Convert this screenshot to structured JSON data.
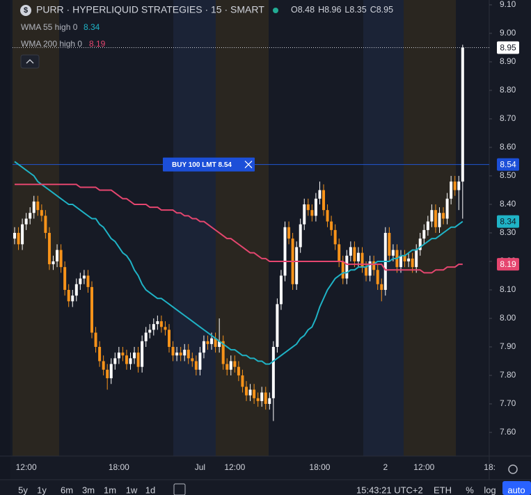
{
  "header": {
    "symbol": "PURR · HYPERLIQUID STRATEGIES · 15 · SMART",
    "ohlc": [
      "O8.48",
      "H8.96",
      "L8.35",
      "C8.95"
    ]
  },
  "chart_data": {
    "type": "candlestick",
    "categories": [
      null,
      null,
      null,
      "12:00",
      null,
      null,
      null,
      null,
      null,
      null,
      null,
      null,
      null,
      null,
      null,
      null,
      null,
      null,
      null,
      null,
      null,
      null,
      null,
      null,
      null,
      null,
      null,
      "18:00",
      null,
      null,
      null,
      null,
      null,
      null,
      null,
      null,
      null,
      null,
      null,
      null,
      null,
      null,
      null,
      null,
      null,
      null,
      null,
      null,
      "Jul",
      null,
      null,
      null,
      null,
      null,
      null,
      null,
      null,
      "12:00",
      null,
      null,
      null,
      null,
      null,
      null,
      null,
      null,
      null,
      null,
      null,
      null,
      null,
      null,
      null,
      null,
      null,
      null,
      null,
      null,
      null,
      "18:00",
      null,
      null,
      null,
      null,
      null,
      null,
      null,
      null,
      null,
      null,
      null,
      null,
      null,
      null,
      null,
      null,
      "2",
      null,
      null,
      null,
      null,
      null,
      null,
      null,
      null,
      null,
      "12:00",
      null,
      null,
      null,
      null,
      null,
      null,
      null,
      null,
      null,
      null,
      null,
      null,
      null,
      null,
      null,
      null,
      "18:"
    ],
    "open": [
      8.28,
      8.3,
      8.26,
      8.33,
      8.35,
      8.37,
      8.41,
      8.38,
      8.36,
      8.3,
      8.19,
      8.2,
      8.24,
      8.18,
      8.1,
      8.06,
      8.08,
      8.12,
      8.14,
      8.15,
      8.11,
      7.95,
      7.9,
      7.85,
      7.82,
      7.79,
      7.84,
      7.86,
      7.88,
      7.87,
      7.84,
      7.86,
      7.88,
      7.83,
      7.92,
      7.95,
      7.96,
      7.98,
      7.99,
      7.97,
      7.96,
      7.9,
      7.87,
      7.88,
      7.87,
      7.89,
      7.86,
      7.85,
      7.82,
      7.88,
      7.92,
      7.91,
      7.93,
      7.9,
      7.92,
      7.84,
      7.82,
      7.85,
      7.83,
      7.8,
      7.76,
      7.73,
      7.75,
      7.72,
      7.71,
      7.74,
      7.7,
      7.72,
      7.9,
      8.05,
      8.15,
      8.32,
      8.28,
      8.12,
      8.25,
      8.33,
      8.4,
      8.38,
      8.36,
      8.42,
      8.45,
      8.38,
      8.34,
      8.31,
      8.26,
      8.2,
      8.14,
      8.22,
      8.25,
      8.2,
      8.23,
      8.18,
      8.15,
      8.2,
      8.17,
      8.12,
      8.1,
      8.3,
      8.22,
      8.24,
      8.18,
      8.22,
      8.2,
      8.21,
      8.18,
      8.24,
      8.28,
      8.31,
      8.34,
      8.38,
      8.32,
      8.37,
      8.35,
      8.42,
      8.48,
      8.45,
      8.48,
      null,
      null,
      null,
      null,
      null,
      null,
      null
    ],
    "high": [
      8.32,
      8.32,
      8.35,
      8.37,
      8.39,
      8.43,
      8.43,
      8.4,
      8.38,
      8.32,
      8.22,
      8.26,
      8.26,
      8.2,
      8.12,
      8.1,
      8.14,
      8.16,
      8.17,
      8.17,
      8.13,
      7.97,
      7.92,
      7.87,
      7.84,
      7.86,
      7.88,
      7.9,
      7.9,
      7.89,
      7.88,
      7.9,
      7.9,
      7.94,
      7.97,
      7.98,
      8.0,
      8.01,
      8.01,
      7.99,
      7.98,
      7.92,
      7.9,
      7.9,
      7.91,
      7.91,
      7.88,
      7.87,
      7.9,
      7.94,
      7.94,
      7.95,
      7.95,
      8.0,
      7.94,
      7.86,
      7.87,
      7.87,
      7.85,
      7.82,
      7.78,
      7.77,
      7.77,
      7.74,
      7.76,
      7.76,
      7.74,
      7.92,
      8.07,
      8.17,
      8.34,
      8.34,
      8.3,
      8.27,
      8.35,
      8.42,
      8.42,
      8.4,
      8.44,
      8.48,
      8.47,
      8.4,
      8.36,
      8.33,
      8.28,
      8.22,
      8.24,
      8.27,
      8.27,
      8.25,
      8.25,
      8.2,
      8.22,
      8.22,
      8.19,
      8.14,
      8.32,
      8.32,
      8.26,
      8.26,
      8.24,
      8.24,
      8.23,
      8.23,
      8.26,
      8.3,
      8.33,
      8.36,
      8.4,
      8.4,
      8.39,
      8.39,
      8.44,
      8.5,
      8.5,
      8.5,
      8.96,
      null,
      null,
      null,
      null,
      null,
      null,
      null
    ],
    "low": [
      8.26,
      8.24,
      8.24,
      8.31,
      8.33,
      8.35,
      8.36,
      8.34,
      8.28,
      8.17,
      8.17,
      8.18,
      8.16,
      8.08,
      8.04,
      8.04,
      8.06,
      8.1,
      8.12,
      8.09,
      7.93,
      7.88,
      7.83,
      7.8,
      7.75,
      7.77,
      7.82,
      7.84,
      7.85,
      7.82,
      7.82,
      7.84,
      7.81,
      7.81,
      7.9,
      7.93,
      7.94,
      7.96,
      7.95,
      7.94,
      7.88,
      7.85,
      7.85,
      7.85,
      7.85,
      7.84,
      7.83,
      7.8,
      7.8,
      7.86,
      7.89,
      7.89,
      7.88,
      7.88,
      7.82,
      7.8,
      7.8,
      7.81,
      7.78,
      7.74,
      7.71,
      7.71,
      7.7,
      7.69,
      7.69,
      7.68,
      7.68,
      7.64,
      7.88,
      8.03,
      8.13,
      8.26,
      8.1,
      8.1,
      8.23,
      8.31,
      8.36,
      8.34,
      8.34,
      8.4,
      8.36,
      8.32,
      8.29,
      8.24,
      8.18,
      8.12,
      8.12,
      8.2,
      8.18,
      8.18,
      8.16,
      8.13,
      8.13,
      8.15,
      8.1,
      8.06,
      8.08,
      8.2,
      8.2,
      8.16,
      8.16,
      8.18,
      8.18,
      8.16,
      8.16,
      8.22,
      8.26,
      8.29,
      8.32,
      8.3,
      8.3,
      8.33,
      8.33,
      8.4,
      8.43,
      8.38,
      8.35,
      null,
      null,
      null,
      null,
      null,
      null,
      null
    ],
    "close": [
      8.3,
      8.26,
      8.33,
      8.35,
      8.37,
      8.41,
      8.38,
      8.36,
      8.3,
      8.19,
      8.2,
      8.24,
      8.18,
      8.1,
      8.06,
      8.08,
      8.12,
      8.14,
      8.15,
      8.11,
      7.95,
      7.9,
      7.85,
      7.82,
      7.79,
      7.84,
      7.86,
      7.88,
      7.87,
      7.84,
      7.86,
      7.88,
      7.83,
      7.92,
      7.95,
      7.96,
      7.98,
      7.99,
      7.97,
      7.96,
      7.9,
      7.87,
      7.88,
      7.87,
      7.89,
      7.86,
      7.85,
      7.82,
      7.88,
      7.92,
      7.91,
      7.93,
      7.9,
      7.92,
      7.84,
      7.82,
      7.85,
      7.83,
      7.8,
      7.76,
      7.73,
      7.75,
      7.72,
      7.71,
      7.74,
      7.7,
      7.72,
      7.9,
      8.05,
      8.15,
      8.32,
      8.28,
      8.12,
      8.25,
      8.33,
      8.4,
      8.38,
      8.36,
      8.42,
      8.45,
      8.38,
      8.34,
      8.31,
      8.26,
      8.2,
      8.14,
      8.22,
      8.25,
      8.2,
      8.23,
      8.18,
      8.15,
      8.2,
      8.17,
      8.12,
      8.1,
      8.3,
      8.22,
      8.24,
      8.18,
      8.22,
      8.2,
      8.21,
      8.18,
      8.24,
      8.28,
      8.31,
      8.34,
      8.38,
      8.32,
      8.37,
      8.35,
      8.42,
      8.48,
      8.45,
      8.48,
      8.95,
      null,
      null,
      null,
      null,
      null,
      null,
      null
    ],
    "up_color": "#ffffff",
    "down_color": "#f7931a",
    "series": [
      {
        "name": "WMA 55 high 0",
        "color": "#1fb3c6",
        "values": [
          8.55,
          8.54,
          8.53,
          8.52,
          8.51,
          8.5,
          8.48,
          8.47,
          8.46,
          8.45,
          8.44,
          8.43,
          8.42,
          8.41,
          8.4,
          8.4,
          8.39,
          8.38,
          8.37,
          8.36,
          8.35,
          8.35,
          8.33,
          8.32,
          8.3,
          8.28,
          8.27,
          8.25,
          8.23,
          8.22,
          8.2,
          8.17,
          8.15,
          8.12,
          8.1,
          8.09,
          8.08,
          8.07,
          8.07,
          8.06,
          8.05,
          8.04,
          8.03,
          8.02,
          8.01,
          8.0,
          7.99,
          7.98,
          7.97,
          7.96,
          7.95,
          7.94,
          7.93,
          7.92,
          7.91,
          7.9,
          7.89,
          7.89,
          7.88,
          7.87,
          7.87,
          7.86,
          7.86,
          7.85,
          7.85,
          7.84,
          7.84,
          7.85,
          7.86,
          7.87,
          7.88,
          7.89,
          7.9,
          7.91,
          7.93,
          7.94,
          7.96,
          7.97,
          8.0,
          8.04,
          8.07,
          8.1,
          8.12,
          8.14,
          8.15,
          8.16,
          8.16,
          8.17,
          8.17,
          8.18,
          8.18,
          8.18,
          8.19,
          8.19,
          8.2,
          8.2,
          8.2,
          8.2,
          8.21,
          8.21,
          8.22,
          8.22,
          8.23,
          8.24,
          8.24,
          8.25,
          8.26,
          8.27,
          8.28,
          8.28,
          8.29,
          8.3,
          8.31,
          8.32,
          8.32,
          8.33,
          8.34,
          null,
          null,
          null,
          null,
          null,
          null,
          null
        ]
      },
      {
        "name": "WMA 200 high 0",
        "color": "#e5466f",
        "values": [
          8.47,
          8.47,
          8.47,
          8.47,
          8.47,
          8.47,
          8.47,
          8.47,
          8.47,
          8.47,
          8.47,
          8.47,
          8.47,
          8.47,
          8.47,
          8.47,
          8.47,
          8.46,
          8.46,
          8.46,
          8.46,
          8.46,
          8.45,
          8.45,
          8.45,
          8.45,
          8.44,
          8.43,
          8.42,
          8.42,
          8.41,
          8.4,
          8.4,
          8.4,
          8.4,
          8.39,
          8.39,
          8.39,
          8.38,
          8.38,
          8.38,
          8.38,
          8.37,
          8.37,
          8.36,
          8.36,
          8.35,
          8.35,
          8.34,
          8.34,
          8.33,
          8.32,
          8.31,
          8.3,
          8.29,
          8.28,
          8.28,
          8.27,
          8.26,
          8.25,
          8.24,
          8.23,
          8.23,
          8.22,
          8.21,
          8.21,
          8.2,
          8.2,
          8.2,
          8.2,
          8.2,
          8.2,
          8.2,
          8.2,
          8.2,
          8.2,
          8.2,
          8.2,
          8.2,
          8.2,
          8.2,
          8.2,
          8.2,
          8.2,
          8.2,
          8.2,
          8.19,
          8.19,
          8.19,
          8.19,
          8.19,
          8.19,
          8.19,
          8.19,
          8.19,
          8.19,
          8.17,
          8.17,
          8.17,
          8.17,
          8.17,
          8.17,
          8.17,
          8.17,
          8.17,
          8.17,
          8.16,
          8.16,
          8.16,
          8.17,
          8.17,
          8.17,
          8.18,
          8.18,
          8.18,
          8.19,
          8.19,
          null,
          null,
          null,
          null,
          null,
          null,
          null
        ]
      }
    ],
    "order": {
      "label": "BUY 100 LMT 8.54",
      "price": 8.54
    },
    "ylim": [
      7.517,
      9.117
    ],
    "yticks": [
      {
        "value": 7.6,
        "label": "7.60"
      },
      {
        "value": 7.7,
        "label": "7.70"
      },
      {
        "value": 7.8,
        "label": "7.80"
      },
      {
        "value": 7.9,
        "label": "7.90"
      },
      {
        "value": 8.0,
        "label": "8.00"
      },
      {
        "value": 8.1,
        "label": "8.10"
      },
      {
        "value": 8.2,
        "label": "8.20"
      },
      {
        "value": 8.3,
        "label": "8.30"
      },
      {
        "value": 8.4,
        "label": "8.40"
      },
      {
        "value": 8.5,
        "label": "8.50"
      },
      {
        "value": 8.6,
        "label": "8.60"
      },
      {
        "value": 8.7,
        "label": "8.70"
      },
      {
        "value": 8.8,
        "label": "8.80"
      },
      {
        "value": 8.9,
        "label": "8.90"
      },
      {
        "value": 9.0,
        "label": "9.00"
      },
      {
        "value": 9.1,
        "label": "9.10"
      }
    ]
  },
  "toolbar": {
    "ranges": [
      "5y",
      "1y",
      "6m",
      "3m",
      "1m",
      "1w",
      "1d"
    ],
    "time": "15:43:21 UTC+2",
    "currency": "ETH",
    "options": [
      "%",
      "log",
      "auto"
    ]
  }
}
